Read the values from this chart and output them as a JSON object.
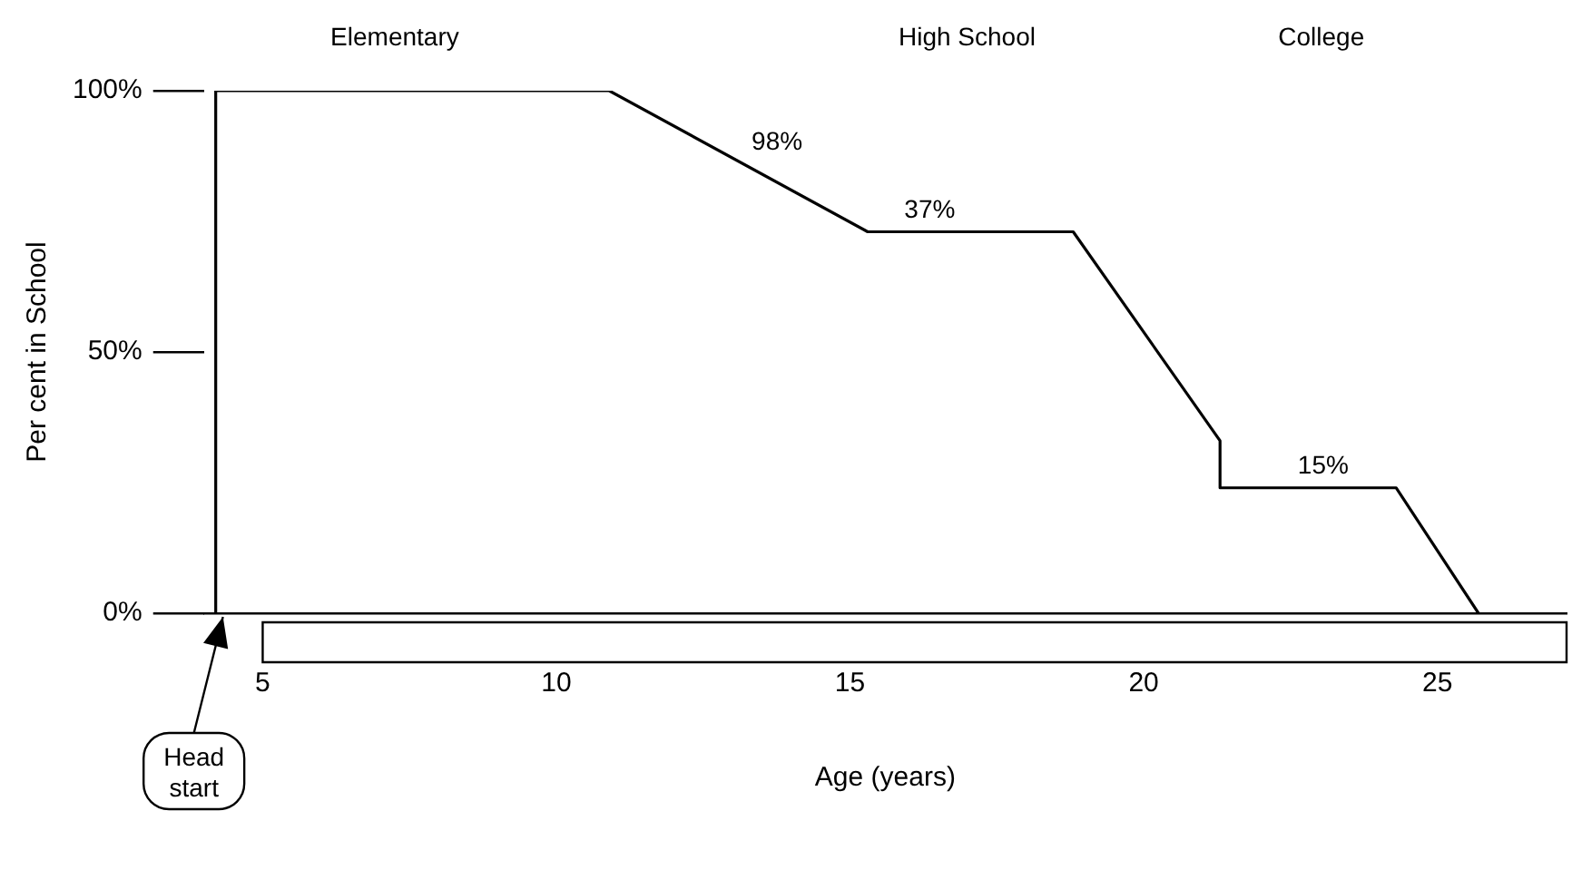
{
  "chart_data": {
    "type": "line",
    "xlabel": "Age (years)",
    "ylabel": "Per cent in School",
    "x": [
      4.2,
      4.2,
      10.9,
      15.3,
      18.8,
      21.3,
      21.3,
      24.3,
      25.7
    ],
    "series": [
      {
        "color": "#000000",
        "values": [
          0,
          100,
          100,
          73,
          73,
          33,
          24,
          24,
          0
        ]
      }
    ],
    "xlim": [
      4,
      27.2
    ],
    "xticks": [
      5,
      10,
      15,
      20,
      25
    ],
    "ylim": [
      0,
      100
    ],
    "yticks": [
      {
        "value": 0,
        "label": "0%"
      },
      {
        "value": 50,
        "label": "50%"
      },
      {
        "value": 100,
        "label": "100%"
      }
    ],
    "grid": false,
    "legend": false,
    "marker": "none",
    "line_style": "solid",
    "annotations": [
      "Elementary",
      "High School",
      "College",
      {
        "text": "98%",
        "x": 13.2,
        "y": 86
      },
      {
        "text": "37%",
        "x": 15.8,
        "y": 73
      },
      {
        "text": "15%",
        "x": 22.5,
        "y": 24
      },
      {
        "text": "Head start",
        "x": 4.2,
        "y": 0
      }
    ]
  }
}
